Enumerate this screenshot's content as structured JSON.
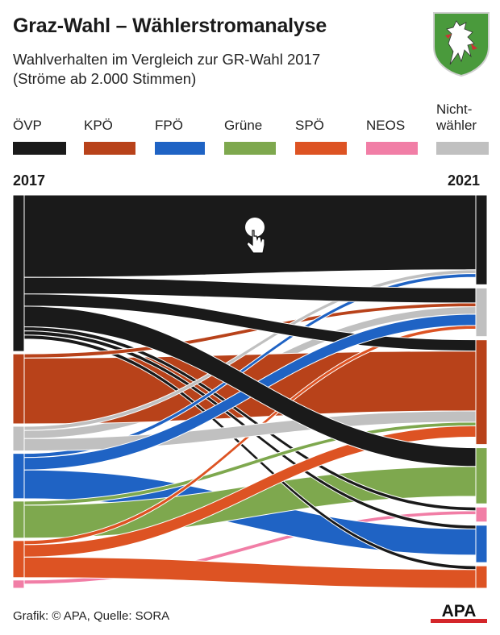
{
  "header": {
    "title": "Graz-Wahl – Wählerstromanalyse",
    "subtitle": "Wahlverhalten im Vergleich zur GR-Wahl 2017\n(Ströme ab 2.000 Stimmen)"
  },
  "footer": {
    "source": "Grafik: © APA, Quelle: SORA",
    "apa_logo": "APA"
  },
  "chart_data": {
    "type": "sankey",
    "title": "Graz-Wahl – Wählerstromanalyse",
    "subtitle": "Wahlverhalten im Vergleich zur GR-Wahl 2017 (Ströme ab 2.000 Stimmen)",
    "left_label": "2017",
    "right_label": "2021",
    "legend_placement": "top",
    "parties": [
      {
        "id": "ovp",
        "name": "ÖVP",
        "color": "#1a1a1a"
      },
      {
        "id": "kpo",
        "name": "KPÖ",
        "color": "#b8421a"
      },
      {
        "id": "fpo",
        "name": "FPÖ",
        "color": "#1f63c4"
      },
      {
        "id": "gru",
        "name": "Grüne",
        "color": "#7ea84e"
      },
      {
        "id": "spo",
        "name": "SPÖ",
        "color": "#dd5323"
      },
      {
        "id": "neo",
        "name": "NEOS",
        "color": "#f17ea6"
      },
      {
        "id": "nw",
        "name": "Nicht-\nwähler",
        "color": "#c0c0c0"
      }
    ],
    "nodes_2017": [
      {
        "party": "ovp",
        "value": 38
      },
      {
        "party": "kpo",
        "value": 17
      },
      {
        "party": "nw",
        "value": 6
      },
      {
        "party": "fpo",
        "value": 11
      },
      {
        "party": "gru",
        "value": 9
      },
      {
        "party": "spo",
        "value": 9
      },
      {
        "party": "neo",
        "value": 2
      }
    ],
    "nodes_2021": [
      {
        "party": "ovp",
        "value": 24
      },
      {
        "party": "nw",
        "value": 13
      },
      {
        "party": "kpo",
        "value": 28
      },
      {
        "party": "gru",
        "value": 15
      },
      {
        "party": "neo",
        "value": 4
      },
      {
        "party": "fpo",
        "value": 10
      },
      {
        "party": "spo",
        "value": 6
      }
    ],
    "flows": [
      {
        "from": "ovp",
        "to": "ovp",
        "value": 20
      },
      {
        "from": "ovp",
        "to": "kpo",
        "value": 3
      },
      {
        "from": "ovp",
        "to": "gru",
        "value": 5
      },
      {
        "from": "ovp",
        "to": "nw",
        "value": 4
      },
      {
        "from": "ovp",
        "to": "neo",
        "value": 1
      },
      {
        "from": "ovp",
        "to": "fpo",
        "value": 1
      },
      {
        "from": "ovp",
        "to": "spo",
        "value": 1
      },
      {
        "from": "kpo",
        "to": "kpo",
        "value": 16
      },
      {
        "from": "kpo",
        "to": "nw",
        "value": 1
      },
      {
        "from": "nw",
        "to": "kpo",
        "value": 3
      },
      {
        "from": "nw",
        "to": "nw",
        "value": 2
      },
      {
        "from": "nw",
        "to": "ovp",
        "value": 1
      },
      {
        "from": "fpo",
        "to": "fpo",
        "value": 7
      },
      {
        "from": "fpo",
        "to": "nw",
        "value": 3
      },
      {
        "from": "fpo",
        "to": "ovp",
        "value": 1
      },
      {
        "from": "gru",
        "to": "gru",
        "value": 8
      },
      {
        "from": "gru",
        "to": "kpo",
        "value": 1
      },
      {
        "from": "spo",
        "to": "spo",
        "value": 5
      },
      {
        "from": "spo",
        "to": "kpo",
        "value": 3
      },
      {
        "from": "spo",
        "to": "nw",
        "value": 1
      },
      {
        "from": "neo",
        "to": "neo",
        "value": 1
      }
    ]
  }
}
